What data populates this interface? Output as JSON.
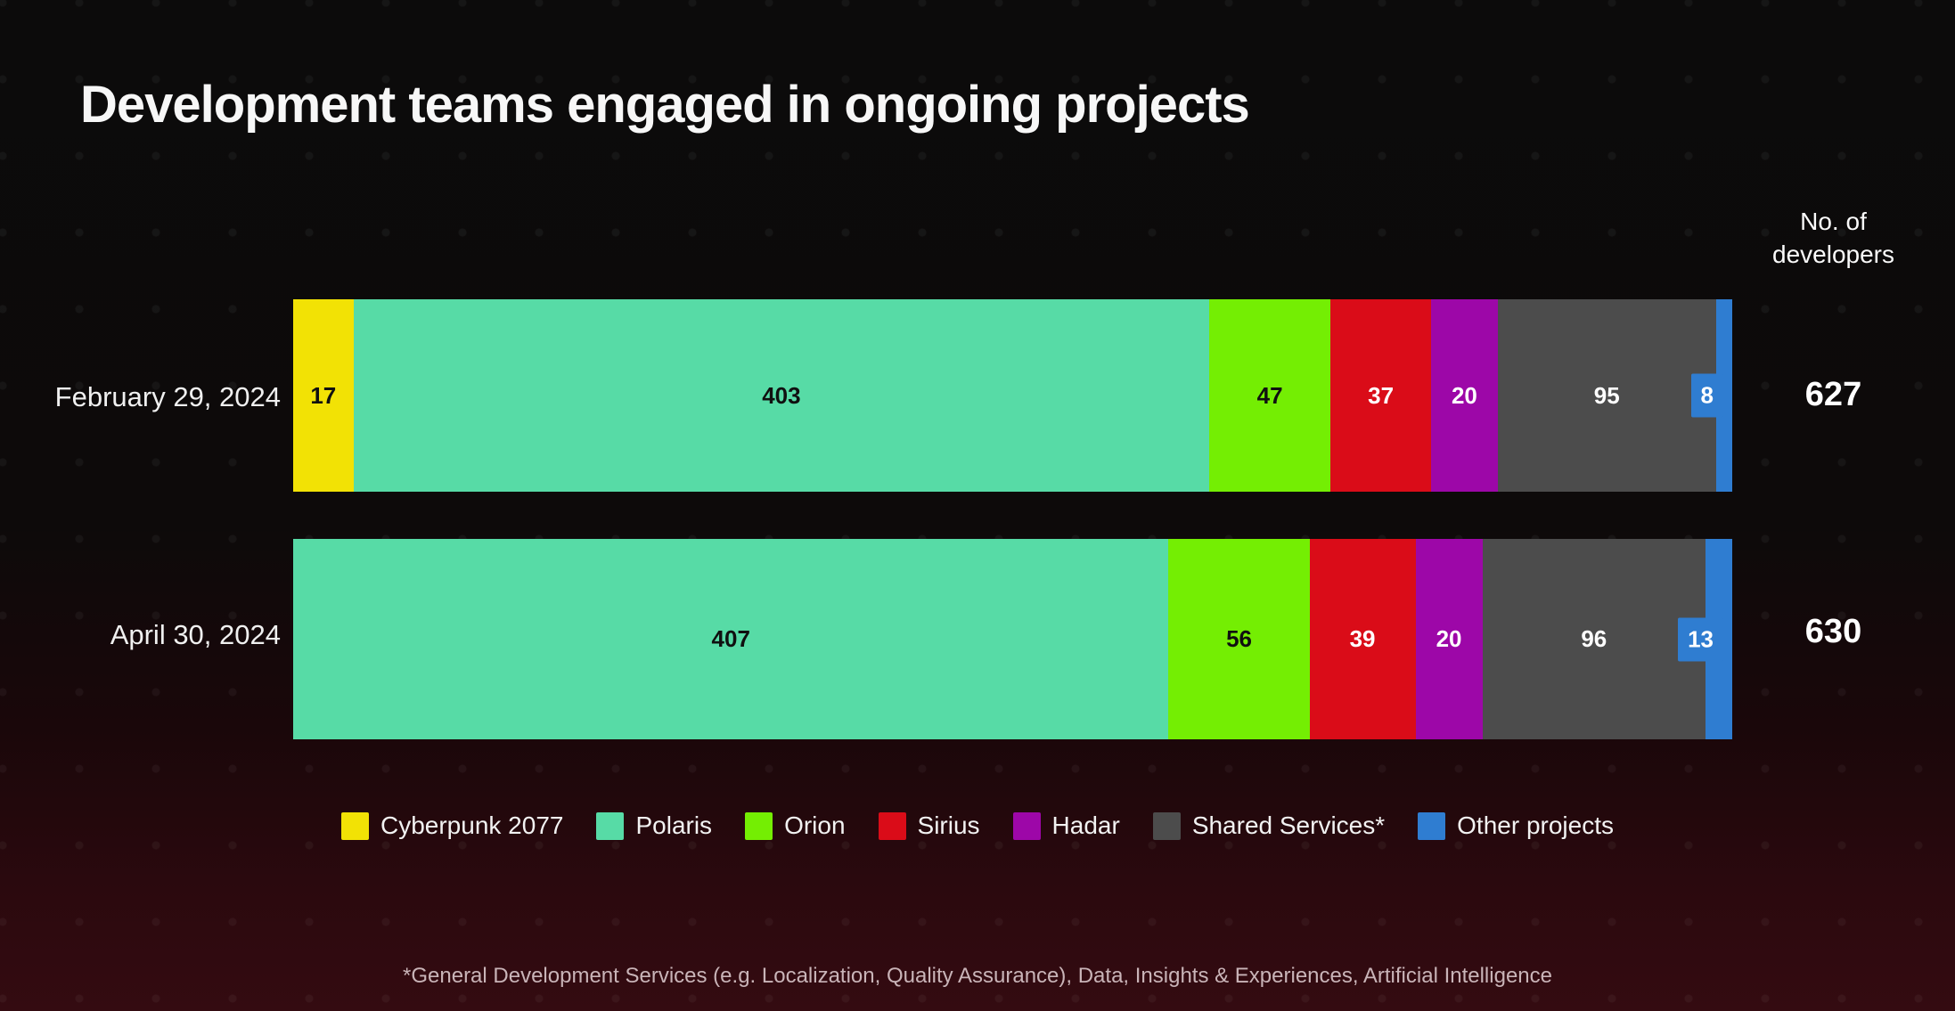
{
  "title": "Development teams engaged in ongoing projects",
  "col_header": {
    "line1": "No. of",
    "line2": "developers"
  },
  "footnote": "*General Development Services (e.g. Localization, Quality Assurance), Data, Insights & Experiences, Artificial Intelligence",
  "colors": {
    "cyberpunk": "#f2e205",
    "polaris": "#57dba6",
    "orion": "#74ee03",
    "sirius": "#da0c18",
    "hadar": "#9d07a8",
    "shared": "#4c4c4c",
    "other": "#2f7dd1"
  },
  "legend": [
    {
      "key": "cyberpunk",
      "label": "Cyberpunk 2077"
    },
    {
      "key": "polaris",
      "label": "Polaris"
    },
    {
      "key": "orion",
      "label": "Orion"
    },
    {
      "key": "sirius",
      "label": "Sirius"
    },
    {
      "key": "hadar",
      "label": "Hadar"
    },
    {
      "key": "shared",
      "label": "Shared Services*"
    },
    {
      "key": "other",
      "label": "Other projects"
    }
  ],
  "rows": [
    {
      "label": "February 29, 2024",
      "total": "627",
      "segments": [
        {
          "key": "cyberpunk",
          "value": 17,
          "label": "17",
          "text": "dark"
        },
        {
          "key": "polaris",
          "value": 403,
          "label": "403",
          "text": "dark"
        },
        {
          "key": "orion",
          "value": 47,
          "label": "47",
          "text": "dark"
        },
        {
          "key": "sirius",
          "value": 37,
          "label": "37",
          "text": "light"
        },
        {
          "key": "hadar",
          "value": 20,
          "label": "20",
          "text": "light"
        },
        {
          "key": "shared",
          "value": 95,
          "label": "95",
          "text": "light"
        },
        {
          "key": "other",
          "value": 8,
          "label": "8",
          "text": "light",
          "chip": true
        }
      ]
    },
    {
      "label": "April 30, 2024",
      "total": "630",
      "segments": [
        {
          "key": "polaris",
          "value": 407,
          "label": "407",
          "text": "dark"
        },
        {
          "key": "orion",
          "value": 56,
          "label": "56",
          "text": "dark"
        },
        {
          "key": "sirius",
          "value": 39,
          "label": "39",
          "text": "light"
        },
        {
          "key": "hadar",
          "value": 20,
          "label": "20",
          "text": "light"
        },
        {
          "key": "shared",
          "value": 96,
          "label": "96",
          "text": "light"
        },
        {
          "key": "other",
          "value": 13,
          "label": "13",
          "text": "light",
          "chip": true
        }
      ]
    }
  ],
  "chart_data": {
    "type": "bar",
    "orientation": "horizontal-stacked",
    "title": "Development teams engaged in ongoing projects",
    "value_axis_label": "No. of developers",
    "categories": [
      "February 29, 2024",
      "April 30, 2024"
    ],
    "series": [
      {
        "name": "Cyberpunk 2077",
        "color": "#f2e205",
        "values": [
          17,
          0
        ]
      },
      {
        "name": "Polaris",
        "color": "#57dba6",
        "values": [
          403,
          407
        ]
      },
      {
        "name": "Orion",
        "color": "#74ee03",
        "values": [
          47,
          56
        ]
      },
      {
        "name": "Sirius",
        "color": "#da0c18",
        "values": [
          37,
          39
        ]
      },
      {
        "name": "Hadar",
        "color": "#9d07a8",
        "values": [
          20,
          20
        ]
      },
      {
        "name": "Shared Services*",
        "color": "#4c4c4c",
        "values": [
          95,
          96
        ]
      },
      {
        "name": "Other projects",
        "color": "#2f7dd1",
        "values": [
          8,
          13
        ]
      }
    ],
    "totals": [
      627,
      630
    ],
    "legend_position": "bottom",
    "grid": false,
    "footnote": "*General Development Services (e.g. Localization, Quality Assurance), Data, Insights & Experiences, Artificial Intelligence"
  }
}
